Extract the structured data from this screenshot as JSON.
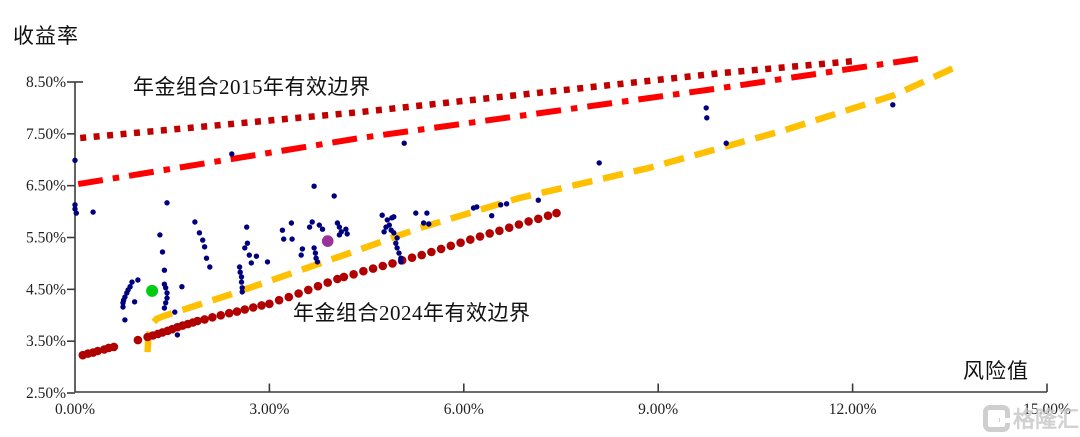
{
  "labels": {
    "y_axis_title": "收益率",
    "x_axis_title": "风险值",
    "frontier_2015_annotation": "年金组合2015年有效边界",
    "frontier_2024_annotation": "年金组合2024年有效边界"
  },
  "watermark": {
    "logo": "G",
    "brand": "格隆汇"
  },
  "colors": {
    "frontier_2015_dotted": "#C00000",
    "red_dashdot": "#FE0000",
    "yellow_dashed": "#FFC000",
    "frontier_2024_dots": "#B00000",
    "portfolio_scatter": "#00007E",
    "green_point": "#00CC11",
    "purple_point": "#993399",
    "axis": "#3C3C3C",
    "tick_text": "#222222",
    "watermark_gray": "#C9C9C9"
  },
  "chart_data": {
    "type": "scatter",
    "title": "",
    "xlabel": "风险值",
    "ylabel": "收益率",
    "xlim": [
      0,
      15
    ],
    "ylim": [
      2.5,
      8.5
    ],
    "grid": false,
    "x_tick_values": [
      0,
      3,
      6,
      9,
      12,
      15
    ],
    "x_tick_labels": [
      "0.00%",
      "3.00%",
      "6.00%",
      "9.00%",
      "12.00%",
      "15.00%"
    ],
    "y_tick_values": [
      2.5,
      3.5,
      4.5,
      5.5,
      6.5,
      7.5,
      8.5
    ],
    "y_tick_labels": [
      "2.50%",
      "3.50%",
      "4.50%",
      "5.50%",
      "6.50%",
      "7.50%",
      "8.50%"
    ],
    "annotations": [
      {
        "text": "年金组合2015年有效边界",
        "x": 2.7,
        "y": 8.35
      },
      {
        "text": "年金组合2024年有效边界",
        "x": 5.2,
        "y": 4.2
      }
    ],
    "series": [
      {
        "name": "frontier-2015-dotted-line",
        "type": "line",
        "style": "dotted",
        "color": "#C00000",
        "width": 6.5,
        "points": [
          [
            0.08,
            7.42
          ],
          [
            4.4,
            7.92
          ],
          [
            9.95,
            8.67
          ],
          [
            12.07,
            8.91
          ]
        ]
      },
      {
        "name": "red-dashdot-line",
        "type": "line",
        "style": "dashdot",
        "color": "#FE0000",
        "width": 6,
        "points": [
          [
            0.05,
            6.53
          ],
          [
            4.4,
            7.42
          ],
          [
            9.95,
            8.38
          ],
          [
            13.08,
            8.96
          ]
        ]
      },
      {
        "name": "frontier-2024-yellow-dashed-line",
        "type": "line",
        "style": "dashed",
        "color": "#FFC000",
        "width": 6.5,
        "points": [
          [
            1.12,
            3.29
          ],
          [
            1.13,
            3.55
          ],
          [
            1.17,
            3.8
          ],
          [
            1.26,
            3.93
          ],
          [
            1.38,
            3.99
          ],
          [
            2.42,
            4.41
          ],
          [
            4.38,
            5.26
          ],
          [
            5.31,
            5.68
          ],
          [
            6.85,
            6.26
          ],
          [
            8.85,
            6.84
          ],
          [
            10.95,
            7.57
          ],
          [
            12.65,
            8.25
          ],
          [
            13.66,
            8.83
          ]
        ]
      },
      {
        "name": "frontier-2024-dots",
        "type": "scatter",
        "color": "#B00000",
        "size": 4.3,
        "points": [
          [
            0.12,
            3.23
          ],
          [
            0.2,
            3.26
          ],
          [
            0.28,
            3.28
          ],
          [
            0.35,
            3.31
          ],
          [
            0.45,
            3.34
          ],
          [
            0.52,
            3.37
          ],
          [
            0.6,
            3.39
          ],
          [
            0.97,
            3.52
          ],
          [
            1.12,
            3.58
          ],
          [
            1.2,
            3.61
          ],
          [
            1.28,
            3.64
          ],
          [
            1.35,
            3.67
          ],
          [
            1.43,
            3.7
          ],
          [
            1.5,
            3.73
          ],
          [
            1.58,
            3.77
          ],
          [
            1.66,
            3.8
          ],
          [
            1.74,
            3.83
          ],
          [
            1.82,
            3.86
          ],
          [
            1.89,
            3.89
          ],
          [
            2.0,
            3.92
          ],
          [
            2.12,
            3.96
          ],
          [
            2.25,
            4.0
          ],
          [
            2.38,
            4.04
          ],
          [
            2.5,
            4.07
          ],
          [
            2.62,
            4.11
          ],
          [
            2.75,
            4.15
          ],
          [
            2.88,
            4.19
          ],
          [
            3.0,
            4.22
          ],
          [
            3.15,
            4.29
          ],
          [
            3.3,
            4.35
          ],
          [
            3.45,
            4.42
          ],
          [
            3.6,
            4.49
          ],
          [
            3.75,
            4.56
          ],
          [
            3.9,
            4.63
          ],
          [
            4.05,
            4.7
          ],
          [
            4.15,
            4.74
          ],
          [
            4.3,
            4.79
          ],
          [
            4.45,
            4.85
          ],
          [
            4.6,
            4.9
          ],
          [
            4.75,
            4.95
          ],
          [
            4.9,
            5.0
          ],
          [
            5.05,
            5.06
          ],
          [
            5.2,
            5.11
          ],
          [
            5.35,
            5.16
          ],
          [
            5.5,
            5.22
          ],
          [
            5.65,
            5.28
          ],
          [
            5.8,
            5.34
          ],
          [
            5.95,
            5.4
          ],
          [
            6.1,
            5.46
          ],
          [
            6.25,
            5.52
          ],
          [
            6.4,
            5.58
          ],
          [
            6.55,
            5.63
          ],
          [
            6.7,
            5.69
          ],
          [
            6.85,
            5.75
          ],
          [
            7.0,
            5.81
          ],
          [
            7.15,
            5.86
          ],
          [
            7.3,
            5.92
          ],
          [
            7.43,
            5.97
          ]
        ]
      },
      {
        "name": "portfolio-scatter-points",
        "type": "scatter",
        "color": "#00007E",
        "size": 2.7,
        "points": [
          [
            0.0,
            6.99
          ],
          [
            0.0,
            6.13
          ],
          [
            0.0,
            6.05
          ],
          [
            0.02,
            5.97
          ],
          [
            0.28,
            5.99
          ],
          [
            2.42,
            7.11
          ],
          [
            1.42,
            6.17
          ],
          [
            1.85,
            5.8
          ],
          [
            1.92,
            5.59
          ],
          [
            1.97,
            5.45
          ],
          [
            2.0,
            5.32
          ],
          [
            2.03,
            5.1
          ],
          [
            2.08,
            4.93
          ],
          [
            1.31,
            5.55
          ],
          [
            1.35,
            5.22
          ],
          [
            1.38,
            4.87
          ],
          [
            0.97,
            4.68
          ],
          [
            0.88,
            4.64
          ],
          [
            0.85,
            4.55
          ],
          [
            0.82,
            4.49
          ],
          [
            0.8,
            4.43
          ],
          [
            0.77,
            4.35
          ],
          [
            0.75,
            4.29
          ],
          [
            0.74,
            4.24
          ],
          [
            0.74,
            4.16
          ],
          [
            0.77,
            3.91
          ],
          [
            0.92,
            4.26
          ],
          [
            1.38,
            4.6
          ],
          [
            1.4,
            4.53
          ],
          [
            1.42,
            4.43
          ],
          [
            1.42,
            4.33
          ],
          [
            1.4,
            4.24
          ],
          [
            1.38,
            4.14
          ],
          [
            1.54,
            4.06
          ],
          [
            1.65,
            4.55
          ],
          [
            1.58,
            3.62
          ],
          [
            2.65,
            5.7
          ],
          [
            2.66,
            5.39
          ],
          [
            2.62,
            5.3
          ],
          [
            2.69,
            5.16
          ],
          [
            2.72,
            5.01
          ],
          [
            2.54,
            4.93
          ],
          [
            2.55,
            4.83
          ],
          [
            2.57,
            4.74
          ],
          [
            2.57,
            4.64
          ],
          [
            2.58,
            4.53
          ],
          [
            2.58,
            4.45
          ],
          [
            2.8,
            5.14
          ],
          [
            2.97,
            5.03
          ],
          [
            3.2,
            5.64
          ],
          [
            3.22,
            5.47
          ],
          [
            3.34,
            5.78
          ],
          [
            3.35,
            5.47
          ],
          [
            3.49,
            5.16
          ],
          [
            3.51,
            5.28
          ],
          [
            3.62,
            5.7
          ],
          [
            3.66,
            5.8
          ],
          [
            3.69,
            6.49
          ],
          [
            3.77,
            5.74
          ],
          [
            3.82,
            5.66
          ],
          [
            4.0,
            6.3
          ],
          [
            4.05,
            5.78
          ],
          [
            4.08,
            5.7
          ],
          [
            4.11,
            5.61
          ],
          [
            4.18,
            5.66
          ],
          [
            4.2,
            5.57
          ],
          [
            4.08,
            5.55
          ],
          [
            3.69,
            5.3
          ],
          [
            3.71,
            5.2
          ],
          [
            3.72,
            5.1
          ],
          [
            3.74,
            5.03
          ],
          [
            4.74,
            5.93
          ],
          [
            4.77,
            5.61
          ],
          [
            4.8,
            5.7
          ],
          [
            4.82,
            5.84
          ],
          [
            4.85,
            5.74
          ],
          [
            4.88,
            5.64
          ],
          [
            4.89,
            5.88
          ],
          [
            4.92,
            5.9
          ],
          [
            4.92,
            5.59
          ],
          [
            4.97,
            5.49
          ],
          [
            4.95,
            5.39
          ],
          [
            4.97,
            5.3
          ],
          [
            5.0,
            5.2
          ],
          [
            5.03,
            5.1
          ],
          [
            5.03,
            5.03
          ],
          [
            5.26,
            5.97
          ],
          [
            5.38,
            5.78
          ],
          [
            5.43,
            5.97
          ],
          [
            5.46,
            5.76
          ],
          [
            6.15,
            6.07
          ],
          [
            6.2,
            6.09
          ],
          [
            6.43,
            5.92
          ],
          [
            6.57,
            6.13
          ],
          [
            6.66,
            6.15
          ],
          [
            7.15,
            6.22
          ],
          [
            5.08,
            7.32
          ],
          [
            8.09,
            6.94
          ],
          [
            9.74,
            8.0
          ],
          [
            9.75,
            7.81
          ],
          [
            10.05,
            7.32
          ],
          [
            12.62,
            8.06
          ]
        ]
      },
      {
        "name": "green-point",
        "type": "scatter",
        "color": "#00CC11",
        "size": 6.0,
        "points": [
          [
            1.19,
            4.47
          ]
        ]
      },
      {
        "name": "purple-point",
        "type": "scatter",
        "color": "#993399",
        "size": 5.8,
        "points": [
          [
            3.9,
            5.43
          ]
        ]
      }
    ]
  }
}
